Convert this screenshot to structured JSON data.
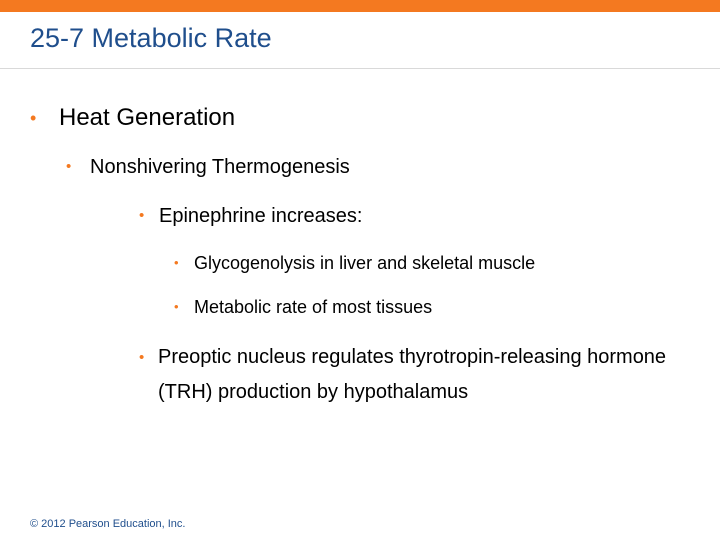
{
  "colors": {
    "accent": "#f47920",
    "title": "#1f4e8c",
    "bullet": "#f47920",
    "text": "#000000",
    "footer": "#1f4e8c"
  },
  "slide": {
    "title": "25-7 Metabolic Rate",
    "bullet_glyph": "•",
    "items": [
      {
        "level": 1,
        "text": "Heat Generation"
      },
      {
        "level": 2,
        "text": "Nonshivering Thermogenesis"
      },
      {
        "level": 3,
        "text": "Epinephrine increases:"
      },
      {
        "level": 4,
        "text": "Glycogenolysis in liver and skeletal muscle"
      },
      {
        "level": 4,
        "text": "Metabolic rate of most tissues"
      },
      {
        "level": 3,
        "text": "Preoptic nucleus regulates thyrotropin-releasing hormone (TRH) production by hypothalamus"
      }
    ],
    "footer": "© 2012 Pearson Education, Inc."
  }
}
